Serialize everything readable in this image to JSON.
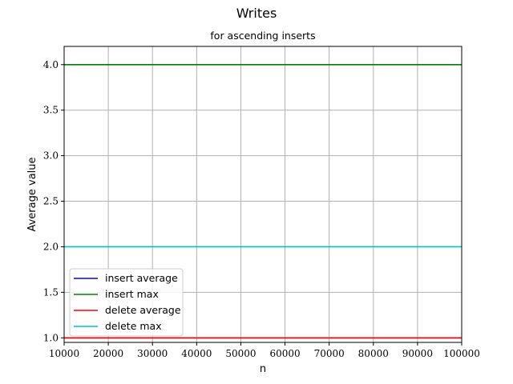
{
  "chart_data": {
    "type": "line",
    "title": "Writes",
    "subtitle": "for ascending inserts",
    "xlabel": "n",
    "ylabel": "Average value",
    "xlim": [
      10000,
      100000
    ],
    "ylim": [
      0.95,
      4.2
    ],
    "x_ticks": [
      10000,
      20000,
      30000,
      40000,
      50000,
      60000,
      70000,
      80000,
      90000,
      100000
    ],
    "y_ticks": [
      1.0,
      1.5,
      2.0,
      2.5,
      3.0,
      3.5,
      4.0
    ],
    "grid": true,
    "legend_position": "lower-left",
    "x": [
      10000,
      100000
    ],
    "series": [
      {
        "name": "insert average",
        "color": "#0000ff",
        "values": [
          1.0,
          1.0
        ]
      },
      {
        "name": "insert max",
        "color": "#008000",
        "values": [
          4.0,
          4.0
        ]
      },
      {
        "name": "delete average",
        "color": "#ff0000",
        "values": [
          1.0,
          1.0
        ]
      },
      {
        "name": "delete max",
        "color": "#00bfbf",
        "values": [
          2.0,
          2.0
        ]
      }
    ]
  }
}
